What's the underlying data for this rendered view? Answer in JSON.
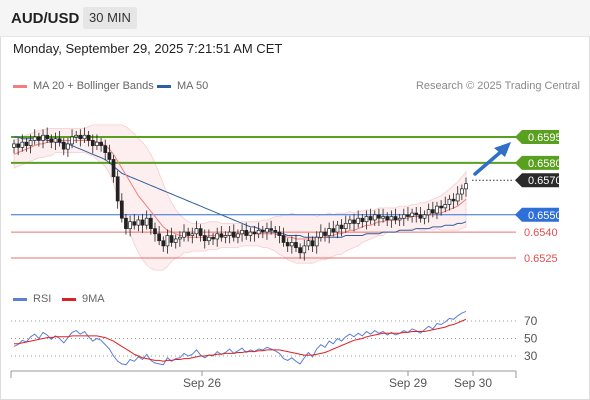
{
  "header": {
    "pair": "AUD/USD",
    "timeframe": "30 MIN"
  },
  "datetime": "Monday, September 29, 2025 7:21:51 AM CET",
  "legend": {
    "ma20": {
      "label": "MA 20 + Bollinger Bands",
      "color": "#f08080"
    },
    "ma50": {
      "label": "MA 50",
      "color": "#2f5f9f"
    }
  },
  "credit": "Research © 2025 Trading Central",
  "rsi_legend": {
    "rsi": {
      "label": "RSI",
      "color": "#5b7fd6"
    },
    "ma9": {
      "label": "9MA",
      "color": "#e02020"
    }
  },
  "chart_data": [
    {
      "type": "candlestick",
      "ylim": [
        0.6515,
        0.6605
      ],
      "x_ticks": [
        "Sep 26",
        "Sep 29",
        "Sep 30"
      ],
      "levels": [
        {
          "value": 0.6595,
          "label": "0.6595",
          "style": "resistance",
          "color": "#5aa020"
        },
        {
          "value": 0.658,
          "label": "0.6580",
          "style": "resistance",
          "color": "#5aa020"
        },
        {
          "value": 0.657,
          "label": "0.6570",
          "style": "current",
          "color": "#2a2a2a"
        },
        {
          "value": 0.655,
          "label": "0.6550",
          "style": "pivot",
          "color": "#2f6fd8"
        },
        {
          "value": 0.654,
          "label": "0.6540",
          "style": "support",
          "color": "#e05050"
        },
        {
          "value": 0.6525,
          "label": "0.6525",
          "style": "support",
          "color": "#e05050"
        }
      ],
      "closes": [
        0.6591,
        0.6589,
        0.6592,
        0.659,
        0.6593,
        0.6595,
        0.6593,
        0.6596,
        0.6594,
        0.6592,
        0.6594,
        0.6592,
        0.6588,
        0.6591,
        0.6595,
        0.6596,
        0.6594,
        0.6596,
        0.6593,
        0.659,
        0.6592,
        0.659,
        0.6586,
        0.6582,
        0.6572,
        0.6558,
        0.6548,
        0.6542,
        0.6546,
        0.6544,
        0.6547,
        0.6544,
        0.6548,
        0.6542,
        0.6539,
        0.6535,
        0.6532,
        0.6538,
        0.6534,
        0.6536,
        0.6537,
        0.654,
        0.6538,
        0.6539,
        0.6542,
        0.6538,
        0.6535,
        0.6537,
        0.6536,
        0.6539,
        0.6537,
        0.6538,
        0.654,
        0.6537,
        0.6539,
        0.6541,
        0.6538,
        0.654,
        0.6539,
        0.6541,
        0.654,
        0.6542,
        0.6541,
        0.654,
        0.6538,
        0.6534,
        0.6532,
        0.6534,
        0.6531,
        0.6528,
        0.6532,
        0.6535,
        0.6532,
        0.6537,
        0.654,
        0.6538,
        0.6542,
        0.654,
        0.6544,
        0.6542,
        0.6545,
        0.6547,
        0.6545,
        0.6548,
        0.6546,
        0.6549,
        0.6547,
        0.655,
        0.6548,
        0.6549,
        0.6547,
        0.6549,
        0.6547,
        0.6548,
        0.655,
        0.6549,
        0.6551,
        0.655,
        0.6548,
        0.655,
        0.6553,
        0.6551,
        0.6555,
        0.6554,
        0.6556,
        0.6559,
        0.6558,
        0.6562,
        0.6565,
        0.6568
      ],
      "ma20": [
        0.6585,
        0.6586,
        0.6587,
        0.6588,
        0.6589,
        0.659,
        0.6591,
        0.6591,
        0.6592,
        0.6592,
        0.6593,
        0.6593,
        0.6593,
        0.6593,
        0.6593,
        0.6593,
        0.6593,
        0.6593,
        0.6593,
        0.6593,
        0.6592,
        0.6591,
        0.659,
        0.6588,
        0.6585,
        0.6581,
        0.6577,
        0.6573,
        0.6569,
        0.6565,
        0.6561,
        0.6558,
        0.6555,
        0.6552,
        0.6549,
        0.6546,
        0.6543,
        0.6541,
        0.654,
        0.6539,
        0.6538,
        0.6538,
        0.6537,
        0.6537,
        0.6537,
        0.6537,
        0.6537,
        0.6538,
        0.6538,
        0.6538,
        0.6538,
        0.6538,
        0.6538,
        0.6538,
        0.6538,
        0.6539,
        0.6539,
        0.6539,
        0.6539,
        0.6539,
        0.6539,
        0.6539,
        0.6539,
        0.6539,
        0.6538,
        0.6538,
        0.6537,
        0.6537,
        0.6536,
        0.6536,
        0.6536,
        0.6536,
        0.6536,
        0.6536,
        0.6537,
        0.6537,
        0.6538,
        0.6538,
        0.6539,
        0.6539,
        0.654,
        0.6541,
        0.6541,
        0.6542,
        0.6543,
        0.6544,
        0.6544,
        0.6545,
        0.6546,
        0.6546,
        0.6547,
        0.6547,
        0.6547,
        0.6548,
        0.6548,
        0.6548,
        0.6549,
        0.6549,
        0.6549,
        0.6549,
        0.655,
        0.655,
        0.6551,
        0.6551,
        0.6552,
        0.6553,
        0.6554,
        0.6555,
        0.6557,
        0.6559
      ],
      "bb_width": [
        0.0008,
        0.0008,
        0.0008,
        0.0008,
        0.0008,
        0.0008,
        0.0008,
        0.0008,
        0.0008,
        0.0008,
        0.0007,
        0.0007,
        0.0007,
        0.0007,
        0.0007,
        0.0007,
        0.0007,
        0.0007,
        0.0008,
        0.0009,
        0.001,
        0.0011,
        0.0012,
        0.0014,
        0.0017,
        0.0021,
        0.0025,
        0.0028,
        0.003,
        0.0032,
        0.0033,
        0.0034,
        0.0034,
        0.0033,
        0.0031,
        0.0028,
        0.0025,
        0.0021,
        0.0017,
        0.0014,
        0.0012,
        0.001,
        0.0009,
        0.0008,
        0.0008,
        0.0008,
        0.0008,
        0.0008,
        0.0008,
        0.0008,
        0.0007,
        0.0007,
        0.0007,
        0.0007,
        0.0007,
        0.0007,
        0.0007,
        0.0007,
        0.0007,
        0.0007,
        0.0008,
        0.0008,
        0.0009,
        0.001,
        0.0011,
        0.0012,
        0.0013,
        0.0014,
        0.0014,
        0.0014,
        0.0014,
        0.0014,
        0.0014,
        0.0013,
        0.0013,
        0.0013,
        0.0013,
        0.0012,
        0.0012,
        0.0012,
        0.0011,
        0.0011,
        0.001,
        0.001,
        0.0009,
        0.0009,
        0.0008,
        0.0008,
        0.0008,
        0.0008,
        0.0007,
        0.0007,
        0.0007,
        0.0007,
        0.0007,
        0.0007,
        0.0007,
        0.0007,
        0.0008,
        0.0008,
        0.0008,
        0.0009,
        0.0009,
        0.001,
        0.0011,
        0.0012,
        0.0013,
        0.0014,
        0.0015,
        0.0016
      ],
      "ma50": [
        0.6595,
        0.6595,
        0.6594,
        0.6594,
        0.6594,
        0.6594,
        0.6594,
        0.6594,
        0.6593,
        0.6593,
        0.6592,
        0.6592,
        0.6591,
        0.6591,
        0.659,
        0.6589,
        0.6588,
        0.6587,
        0.6586,
        0.6585,
        0.6584,
        0.6583,
        0.6582,
        0.658,
        0.6578,
        0.6576,
        0.6574,
        0.6573,
        0.6572,
        0.6571,
        0.657,
        0.6569,
        0.6568,
        0.6567,
        0.6566,
        0.6565,
        0.6564,
        0.6563,
        0.6562,
        0.6561,
        0.656,
        0.6559,
        0.6558,
        0.6557,
        0.6556,
        0.6555,
        0.6554,
        0.6553,
        0.6552,
        0.6551,
        0.655,
        0.6549,
        0.6548,
        0.6547,
        0.6546,
        0.6545,
        0.6544,
        0.6543,
        0.6543,
        0.6542,
        0.6541,
        0.6541,
        0.654,
        0.654,
        0.6539,
        0.6539,
        0.6538,
        0.6538,
        0.6538,
        0.6538,
        0.6537,
        0.6537,
        0.6537,
        0.6537,
        0.6537,
        0.6537,
        0.6537,
        0.6537,
        0.6537,
        0.6537,
        0.6538,
        0.6538,
        0.6538,
        0.6538,
        0.6538,
        0.6539,
        0.6539,
        0.6539,
        0.6539,
        0.654,
        0.654,
        0.654,
        0.654,
        0.6541,
        0.6541,
        0.6541,
        0.6541,
        0.6542,
        0.6542,
        0.6542,
        0.6542,
        0.6543,
        0.6543,
        0.6543,
        0.6544,
        0.6544,
        0.6544,
        0.6545,
        0.6545,
        0.6546
      ]
    },
    {
      "type": "line",
      "ylim": [
        20,
        80
      ],
      "y_ticks": [
        70,
        50,
        30
      ],
      "dotted_levels": [
        70,
        50,
        30
      ],
      "series": [
        {
          "name": "RSI",
          "values": [
            41,
            43,
            48,
            46,
            52,
            55,
            50,
            57,
            54,
            49,
            53,
            50,
            45,
            51,
            57,
            59,
            55,
            58,
            52,
            47,
            50,
            48,
            43,
            38,
            30,
            24,
            21,
            20,
            26,
            24,
            29,
            26,
            32,
            25,
            22,
            21,
            20,
            28,
            24,
            27,
            28,
            33,
            30,
            32,
            37,
            31,
            28,
            31,
            30,
            35,
            32,
            34,
            38,
            33,
            36,
            39,
            34,
            37,
            35,
            38,
            37,
            40,
            38,
            36,
            33,
            27,
            25,
            28,
            24,
            21,
            28,
            34,
            29,
            38,
            43,
            40,
            47,
            44,
            50,
            47,
            52,
            55,
            52,
            56,
            53,
            58,
            55,
            59,
            56,
            58,
            54,
            57,
            54,
            56,
            59,
            57,
            61,
            59,
            56,
            60,
            64,
            61,
            67,
            66,
            69,
            73,
            72,
            76,
            79,
            81
          ]
        },
        {
          "name": "9MA",
          "values": [
            44,
            44,
            45,
            46,
            47,
            48,
            49,
            50,
            51,
            51,
            52,
            52,
            52,
            52,
            53,
            53,
            53,
            53,
            53,
            53,
            53,
            52,
            51,
            49,
            47,
            44,
            41,
            38,
            35,
            32,
            30,
            28,
            27,
            26,
            25,
            25,
            24,
            25,
            25,
            26,
            26,
            27,
            27,
            28,
            29,
            30,
            30,
            31,
            31,
            32,
            32,
            33,
            33,
            33,
            34,
            34,
            35,
            35,
            35,
            36,
            36,
            37,
            37,
            37,
            37,
            36,
            35,
            34,
            33,
            32,
            31,
            31,
            31,
            32,
            33,
            34,
            36,
            38,
            40,
            42,
            44,
            46,
            48,
            49,
            50,
            52,
            53,
            54,
            55,
            56,
            56,
            56,
            56,
            56,
            57,
            57,
            58,
            58,
            58,
            58,
            59,
            60,
            61,
            62,
            63,
            65,
            66,
            68,
            70,
            72
          ]
        }
      ],
      "x_ticks": [
        "Sep 26",
        "Sep 29",
        "Sep 30"
      ]
    }
  ]
}
